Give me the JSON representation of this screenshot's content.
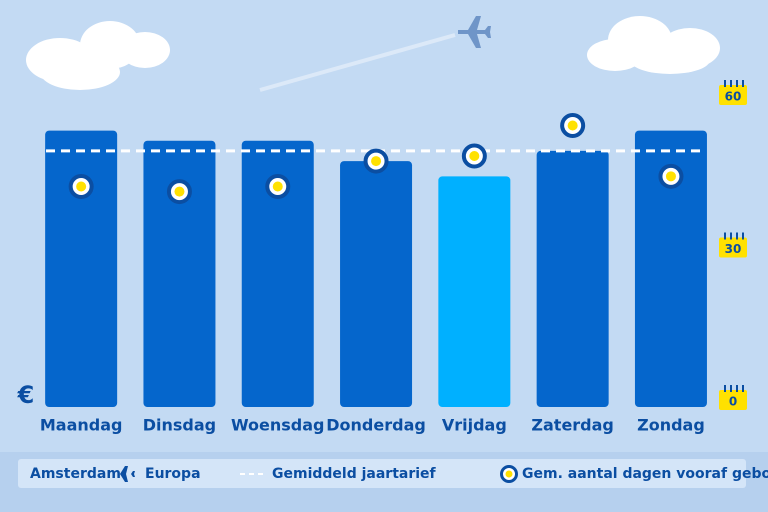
{
  "chart_data": {
    "type": "bar",
    "currency_label": "€",
    "categories": [
      "Maandag",
      "Dinsdag",
      "Woensdag",
      "Donderdag",
      "Vrijdag",
      "Zaterdag",
      "Zondag"
    ],
    "ylim": [
      0,
      60
    ],
    "y2lim": [
      0,
      60
    ],
    "y2ticks": [
      0,
      30,
      60
    ],
    "series": [
      {
        "name": "Europa",
        "origin": "Amsterdam",
        "colors": [
          "#0566cc",
          "#0566cc",
          "#0566cc",
          "#0566cc",
          "#00b0ff",
          "#0566cc",
          "#0566cc"
        ],
        "values": [
          53,
          51,
          51,
          47,
          44,
          49,
          53
        ]
      },
      {
        "name": "Gem. aantal dagen vooraf geboekt",
        "axis": "y2",
        "color": "#0b4ea2",
        "values": [
          42,
          41,
          42,
          47,
          48,
          54,
          44
        ]
      }
    ],
    "average": {
      "name": "Gemiddeld jaartarief",
      "value": 49,
      "color": "#ffffff"
    }
  }
}
